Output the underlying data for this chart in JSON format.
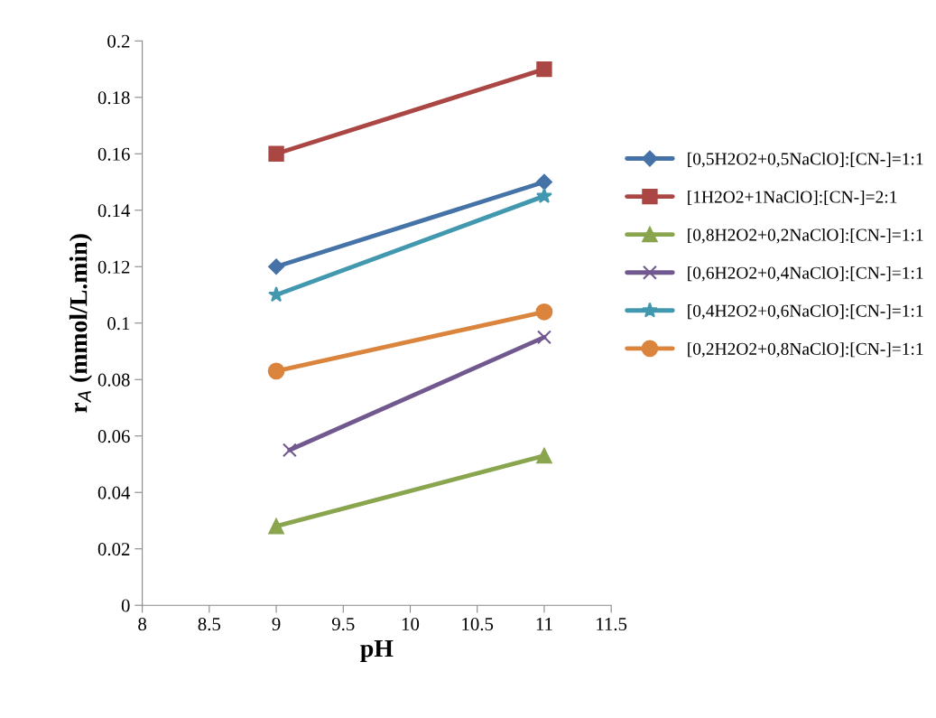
{
  "chart_data": {
    "type": "line",
    "xlabel": "pH",
    "ylabel": "r$_{A}$ (mmol/L.min)",
    "xlim": [
      8,
      11.5
    ],
    "xticks": [
      8,
      8.5,
      9,
      9.5,
      10,
      10.5,
      11,
      11.5
    ],
    "ylim": [
      0,
      0.2
    ],
    "yticks": [
      0,
      0.02,
      0.04,
      0.06,
      0.08,
      0.1,
      0.12,
      0.14,
      0.16,
      0.18,
      0.2
    ],
    "grid": false,
    "legend": "right",
    "line_style": "solid",
    "series": [
      {
        "name": "[0,5H2O2+0,5NaClO]:[CN-]=1:1",
        "color": "#4572a7",
        "marker": "diamond",
        "x": [
          9,
          11
        ],
        "values": [
          0.12,
          0.15
        ]
      },
      {
        "name": "[1H2O2+1NaClO]:[CN-]=2:1",
        "color": "#aa4643",
        "marker": "square",
        "x": [
          9,
          11
        ],
        "values": [
          0.16,
          0.19
        ]
      },
      {
        "name": "[0,8H2O2+0,2NaClO]:[CN-]=1:1",
        "color": "#89a54e",
        "marker": "triangle",
        "x": [
          9,
          11
        ],
        "values": [
          0.028,
          0.053
        ]
      },
      {
        "name": "[0,6H2O2+0,4NaClO]:[CN-]=1:1",
        "color": "#71588f",
        "marker": "cross",
        "x": [
          9.1,
          11
        ],
        "values": [
          0.055,
          0.095
        ]
      },
      {
        "name": "[0,4H2O2+0,6NaClO]:[CN-]=1:1",
        "color": "#4198af",
        "marker": "star",
        "x": [
          9,
          11
        ],
        "values": [
          0.11,
          0.145
        ]
      },
      {
        "name": "[0,2H2O2+0,8NaClO]:[CN-]=1:1",
        "color": "#db843d",
        "marker": "circle",
        "x": [
          9,
          11
        ],
        "values": [
          0.083,
          0.104
        ]
      }
    ]
  }
}
